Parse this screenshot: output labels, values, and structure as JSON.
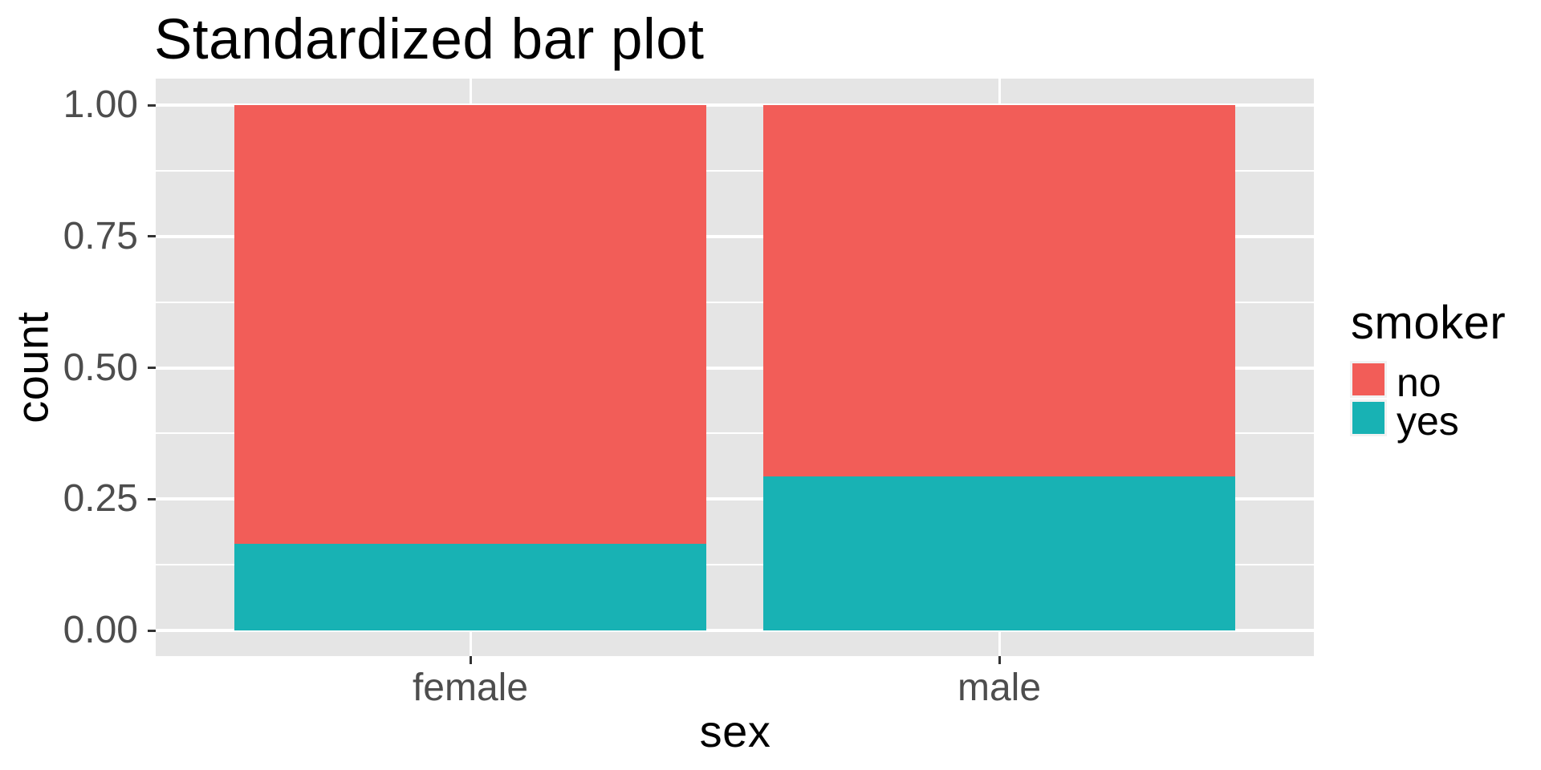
{
  "chart_data": {
    "type": "bar",
    "variant": "stacked-proportion",
    "title": "Standardized bar plot",
    "xlabel": "sex",
    "ylabel": "count",
    "categories": [
      "female",
      "male"
    ],
    "series": [
      {
        "name": "no",
        "color": "#F25D58",
        "values": [
          0.835,
          0.707
        ]
      },
      {
        "name": "yes",
        "color": "#18B2B4",
        "values": [
          0.165,
          0.293
        ]
      }
    ],
    "stack_order": "first-series-on-top",
    "ylim": [
      0,
      1
    ],
    "y_ticks": [
      {
        "value": 0,
        "label": "0.00"
      },
      {
        "value": 0.25,
        "label": "0.25"
      },
      {
        "value": 0.5,
        "label": "0.50"
      },
      {
        "value": 0.75,
        "label": "0.75"
      },
      {
        "value": 1,
        "label": "1.00"
      }
    ],
    "legend": {
      "title": "smoker",
      "position": "right"
    },
    "grid": {
      "major": true,
      "minor": true
    }
  },
  "style_colors": {
    "background": "#FFFFFF",
    "panel_bg": "#E5E5E5",
    "grid": "#FFFFFF",
    "axis_text": "#4D4D4D",
    "tick_mark": "#333333",
    "title_text": "#000000",
    "legend_key_bg": "#F2F2F2"
  }
}
